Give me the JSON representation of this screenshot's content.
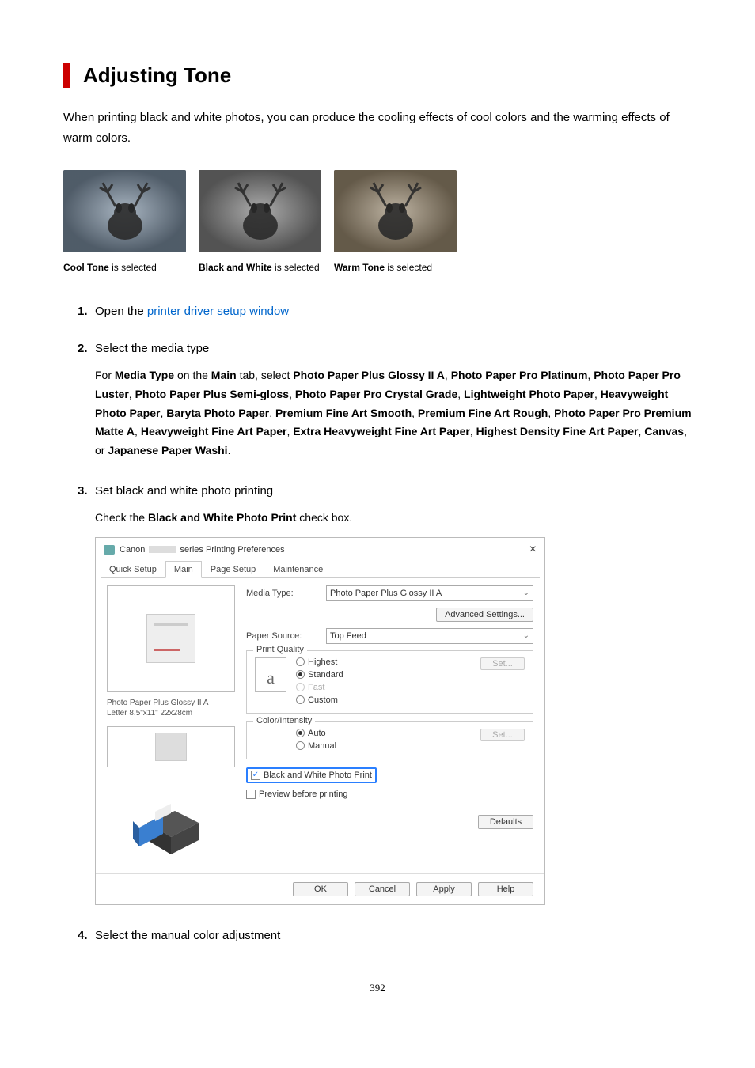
{
  "page": {
    "title": "Adjusting Tone",
    "intro": "When printing black and white photos, you can produce the cooling effects of cool colors and the warming effects of warm colors.",
    "pageNumber": "392"
  },
  "samples": {
    "cool": {
      "label_bold": "Cool Tone",
      "label_rest": " is selected",
      "filter": "#7a8da0"
    },
    "bw": {
      "label_bold": "Black and White",
      "label_rest": " is selected",
      "filter": "#808080"
    },
    "warm": {
      "label_bold": "Warm Tone",
      "label_rest": " is selected",
      "filter": "#9a8a70"
    }
  },
  "steps": {
    "s1": {
      "head_prefix": "Open the ",
      "link": "printer driver setup window"
    },
    "s2": {
      "head": "Select the media type",
      "body_parts": [
        {
          "t": "For "
        },
        {
          "b": "Media Type"
        },
        {
          "t": " on the "
        },
        {
          "b": "Main"
        },
        {
          "t": " tab, select "
        },
        {
          "b": "Photo Paper Plus Glossy II A"
        },
        {
          "t": ", "
        },
        {
          "b": "Photo Paper Pro Platinum"
        },
        {
          "t": ", "
        },
        {
          "b": "Photo Paper Pro Luster"
        },
        {
          "t": ", "
        },
        {
          "b": "Photo Paper Plus Semi-gloss"
        },
        {
          "t": ", "
        },
        {
          "b": "Photo Paper Pro Crystal Grade"
        },
        {
          "t": ", "
        },
        {
          "b": "Lightweight Photo Paper"
        },
        {
          "t": ", "
        },
        {
          "b": "Heavyweight Photo Paper"
        },
        {
          "t": ", "
        },
        {
          "b": "Baryta Photo Paper"
        },
        {
          "t": ", "
        },
        {
          "b": "Premium Fine Art Smooth"
        },
        {
          "t": ", "
        },
        {
          "b": "Premium Fine Art Rough"
        },
        {
          "t": ", "
        },
        {
          "b": "Photo Paper Pro Premium Matte A"
        },
        {
          "t": ", "
        },
        {
          "b": "Heavyweight Fine Art Paper"
        },
        {
          "t": ", "
        },
        {
          "b": "Extra Heavyweight Fine Art Paper"
        },
        {
          "t": ", "
        },
        {
          "b": "Highest Density Fine Art Paper"
        },
        {
          "t": ", "
        },
        {
          "b": "Canvas"
        },
        {
          "t": ", or "
        },
        {
          "b": "Japanese Paper Washi"
        },
        {
          "t": "."
        }
      ]
    },
    "s3": {
      "head": "Set black and white photo printing",
      "body_prefix": "Check the ",
      "body_bold": "Black and White Photo Print",
      "body_suffix": " check box."
    },
    "s4": {
      "head": "Select the manual color adjustment"
    }
  },
  "dialog": {
    "title_prefix": "Canon",
    "title_suffix": "series Printing Preferences",
    "close": "×",
    "tabs": [
      "Quick Setup",
      "Main",
      "Page Setup",
      "Maintenance"
    ],
    "active_tab": 1,
    "labels": {
      "media_type": "Media Type:",
      "paper_source": "Paper Source:",
      "print_quality": "Print Quality",
      "color_intensity": "Color/Intensity"
    },
    "values": {
      "media_type": "Photo Paper Plus Glossy II A",
      "paper_source": "Top Feed",
      "paper_info_line1": "Photo Paper Plus Glossy II A",
      "paper_info_line2": "Letter 8.5\"x11\" 22x28cm",
      "quality_glyph": "a"
    },
    "buttons": {
      "advanced": "Advanced Settings...",
      "set": "Set...",
      "defaults": "Defaults",
      "ok": "OK",
      "cancel": "Cancel",
      "apply": "Apply",
      "help": "Help"
    },
    "quality_options": {
      "highest": "Highest",
      "standard": "Standard",
      "fast": "Fast",
      "custom": "Custom"
    },
    "color_options": {
      "auto": "Auto",
      "manual": "Manual"
    },
    "checks": {
      "bw": "Black and White Photo Print",
      "preview": "Preview before printing"
    }
  }
}
